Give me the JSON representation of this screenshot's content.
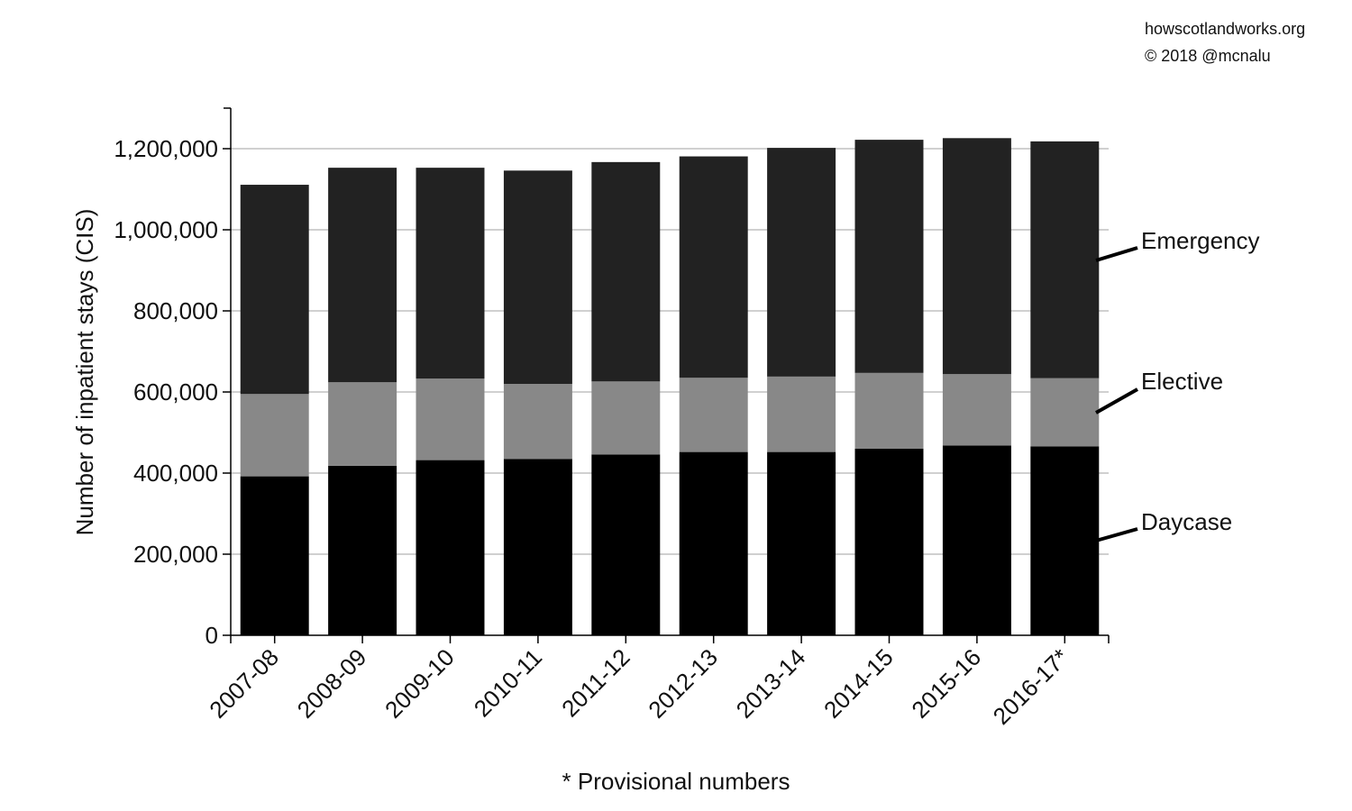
{
  "credit": {
    "site": "howscotlandworks.org",
    "copyright": "© 2018  @mcnalu"
  },
  "footnote": "* Provisional numbers",
  "colors": {
    "Emergency": "#222222",
    "Elective": "#888888",
    "Daycase": "#000000",
    "grid": "#b5b5b5",
    "axis": "#000000"
  },
  "chart_data": {
    "type": "bar",
    "stacked": true,
    "title": "",
    "xlabel": "",
    "ylabel": "Number of inpatient stays (CIS)",
    "ylim": [
      0,
      1300000
    ],
    "yticks": [
      0,
      200000,
      400000,
      600000,
      800000,
      1000000,
      1200000
    ],
    "ytick_labels": [
      "0",
      "200,000",
      "400,000",
      "600,000",
      "800,000",
      "1,000,000",
      "1,200,000"
    ],
    "grid": true,
    "legend_placement": "right (inline labels)",
    "categories": [
      "2007-08",
      "2008-09",
      "2009-10",
      "2010-11",
      "2011-12",
      "2012-13",
      "2013-14",
      "2014-15",
      "2015-16",
      "2016-17*"
    ],
    "series": [
      {
        "name": "Daycase",
        "values": [
          392000,
          418000,
          432000,
          435000,
          446000,
          452000,
          452000,
          460000,
          468000,
          466000
        ]
      },
      {
        "name": "Elective",
        "values": [
          203000,
          206000,
          201000,
          185000,
          180000,
          183000,
          186000,
          187000,
          176000,
          168000
        ]
      },
      {
        "name": "Emergency",
        "values": [
          516000,
          529000,
          520000,
          526000,
          541000,
          546000,
          564000,
          575000,
          582000,
          584000
        ]
      }
    ]
  }
}
